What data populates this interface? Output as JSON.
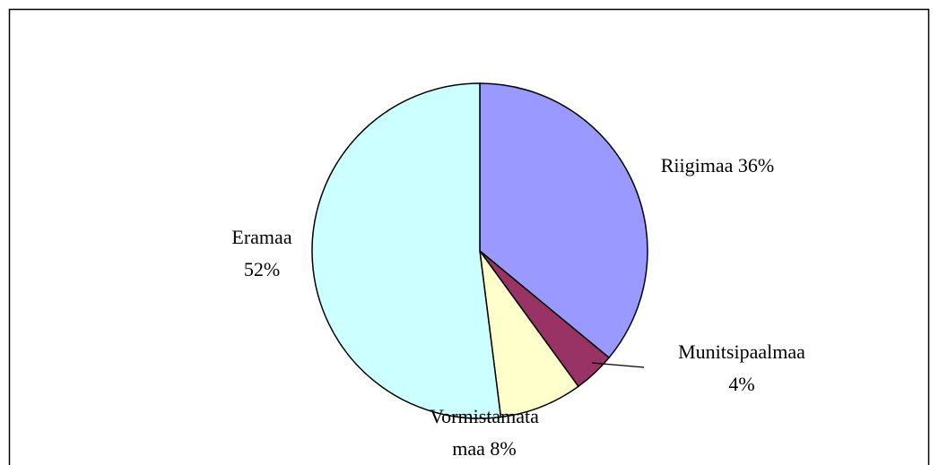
{
  "chart_data": {
    "type": "pie",
    "categories": [
      "Riigimaa",
      "Munitsipaalmaa",
      "Vormistamata maa",
      "Eramaa"
    ],
    "values": [
      36,
      4,
      8,
      52
    ],
    "value_labels": [
      "36%",
      "4%",
      "8%",
      "52%"
    ],
    "colors": [
      "#9999ff",
      "#993366",
      "#ffffcc",
      "#ccffff"
    ]
  }
}
